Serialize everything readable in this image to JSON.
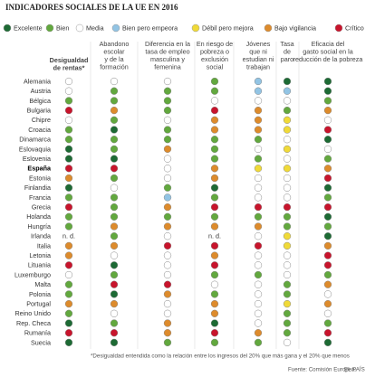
{
  "title": "INDICADORES SOCIALES DE LA UE EN 2016",
  "legend": [
    {
      "label": "Excelente",
      "color": "#1d6a34"
    },
    {
      "label": "Bien",
      "color": "#62a83e"
    },
    {
      "label": "Media",
      "color": "#ffffff"
    },
    {
      "label": "Bien pero empeora",
      "color": "#92c4e4"
    },
    {
      "label": "Débil pero mejora",
      "color": "#f0da38"
    },
    {
      "label": "Bajo vigilancia",
      "color": "#dd8b2c"
    },
    {
      "label": "Crítico",
      "color": "#c8142c"
    }
  ],
  "columns": [
    [
      "Desigualdad",
      "de rentas*"
    ],
    [
      "Abandono",
      "escolar",
      "y de la",
      "formación"
    ],
    [
      "Diferencia en la",
      "tasa de empleo",
      "masculina y",
      "femenina"
    ],
    [
      "En riesgo de",
      "pobreza o",
      "exclusión",
      "social"
    ],
    [
      "Jóvenes",
      "que ni",
      "estudian ni",
      "trabajan"
    ],
    [
      "Tasa",
      "de",
      "paro"
    ],
    [
      "Eficacia del",
      "gasto social en la",
      "reducción de la pobreza"
    ]
  ],
  "rows": [
    {
      "label": "Alemania",
      "cells": [
        2,
        2,
        2,
        1,
        3,
        0,
        0
      ]
    },
    {
      "label": "Austria",
      "cells": [
        2,
        1,
        1,
        1,
        3,
        3,
        0
      ]
    },
    {
      "label": "Bélgica",
      "cells": [
        1,
        1,
        1,
        2,
        2,
        2,
        1
      ]
    },
    {
      "label": "Bulgaria",
      "cells": [
        6,
        5,
        1,
        6,
        5,
        1,
        5
      ]
    },
    {
      "label": "Chipre",
      "cells": [
        2,
        1,
        2,
        5,
        5,
        4,
        2
      ]
    },
    {
      "label": "Croacia",
      "cells": [
        1,
        0,
        1,
        5,
        5,
        4,
        6
      ]
    },
    {
      "label": "Dinamarca",
      "cells": [
        1,
        1,
        1,
        1,
        1,
        2,
        0
      ]
    },
    {
      "label": "Eslovaquia",
      "cells": [
        0,
        1,
        5,
        1,
        2,
        4,
        2
      ]
    },
    {
      "label": "Eslovenia",
      "cells": [
        0,
        0,
        2,
        1,
        1,
        2,
        1
      ]
    },
    {
      "label": "España",
      "cells": [
        6,
        6,
        2,
        5,
        4,
        4,
        5
      ]
    },
    {
      "label": "Estonia",
      "cells": [
        5,
        1,
        2,
        5,
        2,
        2,
        6
      ]
    },
    {
      "label": "Finlandia",
      "cells": [
        0,
        2,
        1,
        0,
        2,
        2,
        0
      ]
    },
    {
      "label": "Francia",
      "cells": [
        1,
        1,
        3,
        1,
        2,
        2,
        1
      ]
    },
    {
      "label": "Grecia",
      "cells": [
        6,
        1,
        5,
        6,
        6,
        6,
        6
      ]
    },
    {
      "label": "Holanda",
      "cells": [
        1,
        1,
        1,
        1,
        1,
        1,
        0
      ]
    },
    {
      "label": "Hungría",
      "cells": [
        1,
        5,
        5,
        5,
        5,
        1,
        1
      ]
    },
    {
      "label": "Irlanda",
      "cells": [
        "n. d.",
        1,
        2,
        "n. d.",
        2,
        4,
        0
      ]
    },
    {
      "label": "Italia",
      "cells": [
        5,
        5,
        6,
        6,
        6,
        4,
        5
      ]
    },
    {
      "label": "Letonia",
      "cells": [
        5,
        2,
        2,
        5,
        2,
        2,
        6
      ]
    },
    {
      "label": "Lituania",
      "cells": [
        6,
        0,
        2,
        6,
        2,
        2,
        6
      ]
    },
    {
      "label": "Luxemburgo",
      "cells": [
        2,
        1,
        2,
        1,
        1,
        2,
        1
      ]
    },
    {
      "label": "Malta",
      "cells": [
        1,
        6,
        6,
        2,
        2,
        1,
        5
      ]
    },
    {
      "label": "Polonia",
      "cells": [
        1,
        0,
        5,
        1,
        2,
        1,
        2
      ]
    },
    {
      "label": "Portugal",
      "cells": [
        5,
        5,
        2,
        5,
        2,
        4,
        5
      ]
    },
    {
      "label": "Reino Unido",
      "cells": [
        1,
        2,
        2,
        5,
        2,
        1,
        2
      ]
    },
    {
      "label": "Rep. Checa",
      "cells": [
        0,
        1,
        5,
        0,
        2,
        1,
        1
      ]
    },
    {
      "label": "Rumanía",
      "cells": [
        6,
        6,
        5,
        6,
        5,
        1,
        6
      ]
    },
    {
      "label": "Suecia",
      "cells": [
        0,
        0,
        1,
        1,
        1,
        2,
        0
      ]
    }
  ],
  "footnote": "*Desigualdad entendida como la relación entre los ingresos del 20% que más gana y el 20% que menos",
  "source": "Fuente: Comisión Europea.",
  "brand": "EL PAÍS"
}
